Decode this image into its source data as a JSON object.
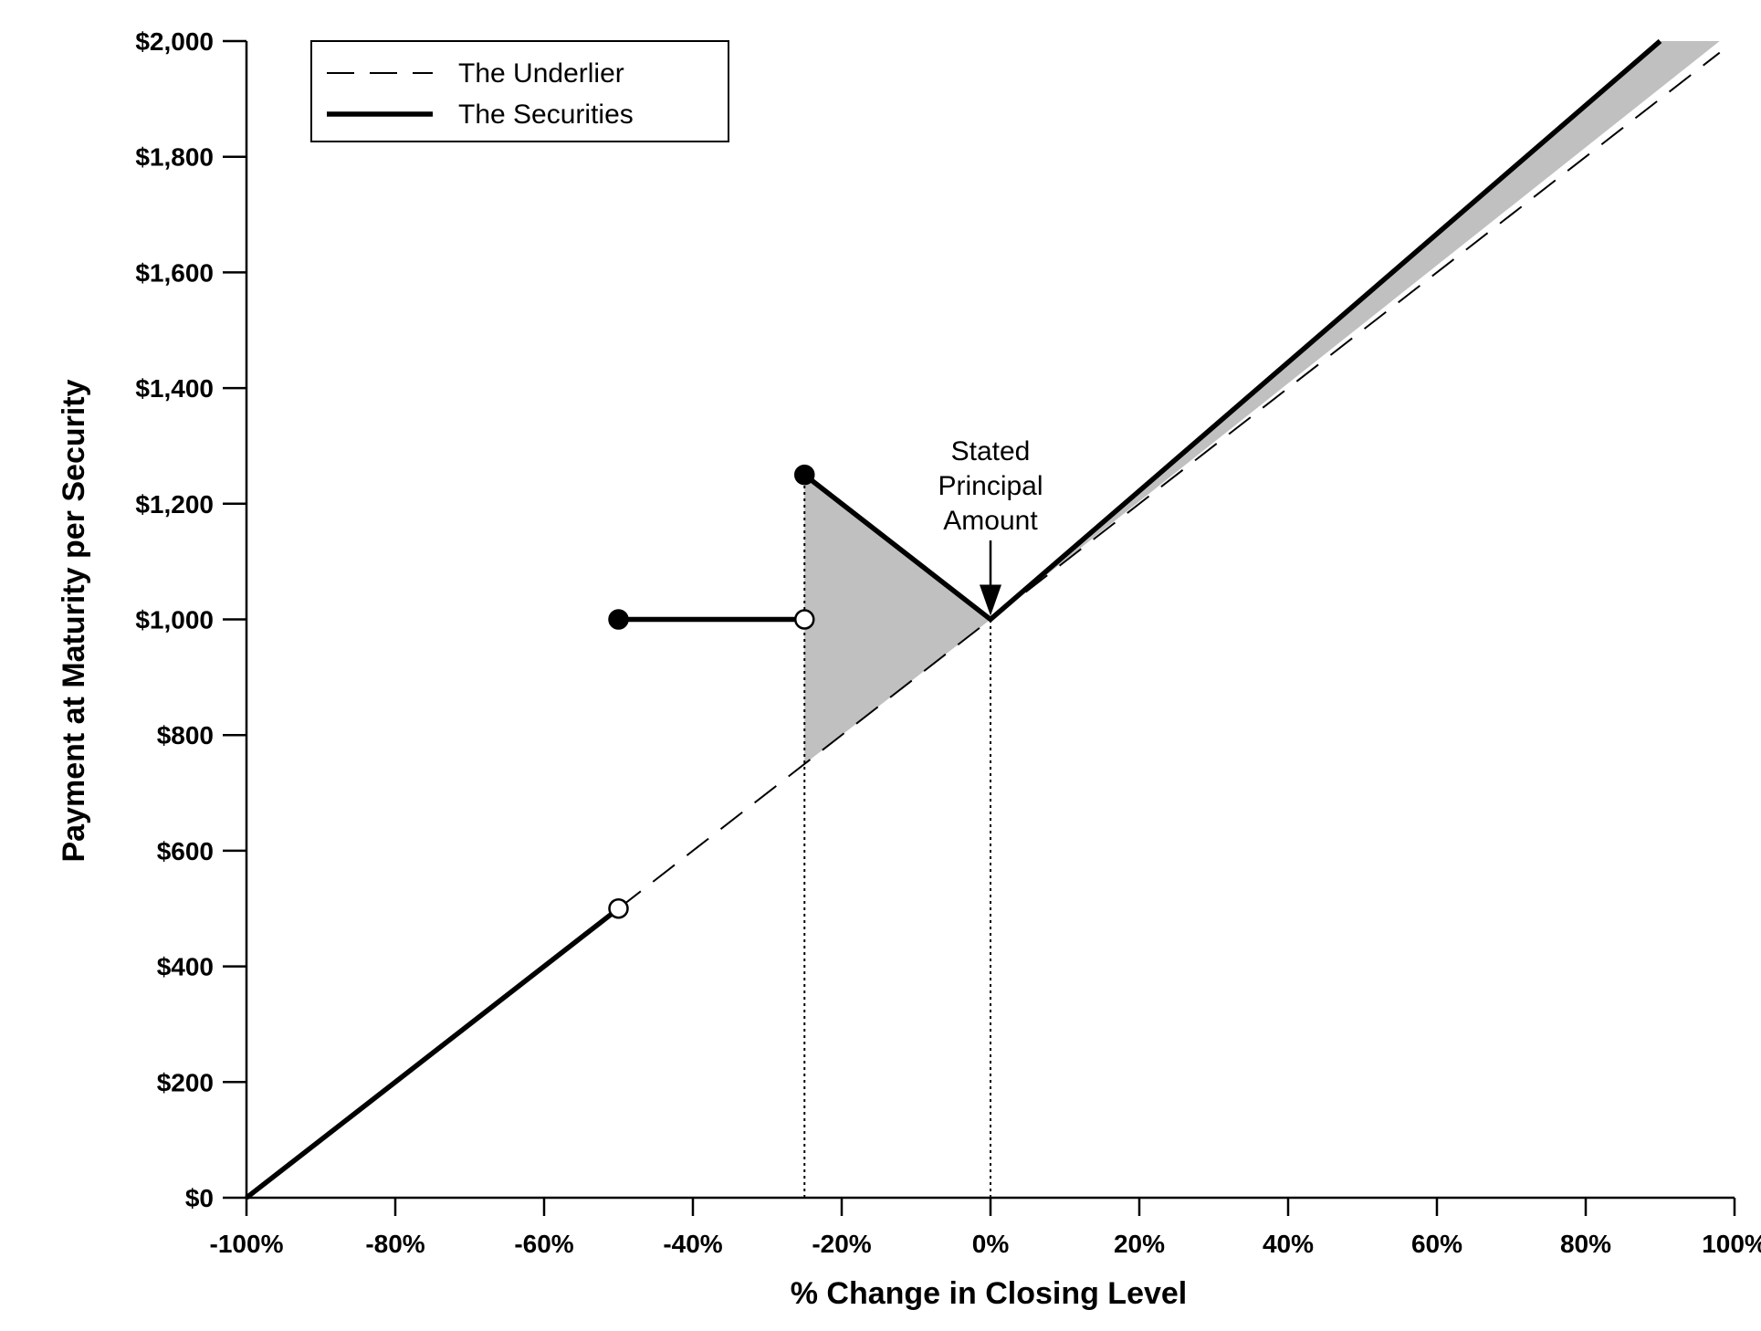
{
  "chart_data": {
    "type": "line",
    "title": "",
    "xlabel": "% Change in Closing Level",
    "ylabel": "Payment at Maturity per Security",
    "xlim": [
      -100,
      100
    ],
    "ylim": [
      0,
      2000
    ],
    "x_ticks": [
      -100,
      -80,
      -60,
      -40,
      -20,
      0,
      20,
      40,
      60,
      80,
      100
    ],
    "x_tick_labels": [
      "-100%",
      "-80%",
      "-60%",
      "-40%",
      "-20%",
      "0%",
      "20%",
      "40%",
      "60%",
      "80%",
      "100%"
    ],
    "y_ticks": [
      0,
      200,
      400,
      600,
      800,
      1000,
      1200,
      1400,
      1600,
      1800,
      2000
    ],
    "y_tick_labels": [
      "$0",
      "$200",
      "$400",
      "$600",
      "$800",
      "$1,000",
      "$1,200",
      "$1,400",
      "$1,600",
      "$1,800",
      "$2,000"
    ],
    "grid": false,
    "legend_position": "top-left",
    "series": [
      {
        "name": "The Underlier",
        "style": "dashed",
        "color": "#000000",
        "segments": [
          [
            [
              -100,
              0
            ],
            [
              98,
              1980
            ]
          ]
        ]
      },
      {
        "name": "The Securities",
        "style": "solid",
        "color": "#000000",
        "segments": [
          [
            [
              -100,
              0
            ],
            [
              -50,
              500
            ]
          ],
          [
            [
              -50,
              1000
            ],
            [
              -25,
              1000
            ]
          ],
          [
            [
              -25,
              1250
            ],
            [
              0,
              1000
            ],
            [
              90,
              2000
            ]
          ]
        ]
      }
    ],
    "markers": [
      {
        "x": -50,
        "y": 500,
        "fill": "open"
      },
      {
        "x": -50,
        "y": 1000,
        "fill": "filled"
      },
      {
        "x": -25,
        "y": 1000,
        "fill": "open"
      },
      {
        "x": -25,
        "y": 1250,
        "fill": "filled"
      }
    ],
    "shaded_regions": [
      {
        "color": "#c0c0c0",
        "polygon": [
          [
            -25,
            1250
          ],
          [
            0,
            1000
          ],
          [
            -25,
            750
          ]
        ]
      },
      {
        "color": "#c0c0c0",
        "polygon": [
          [
            0,
            1000
          ],
          [
            90,
            2000
          ],
          [
            98,
            2000
          ],
          [
            0,
            1000
          ]
        ]
      }
    ],
    "reference_lines": [
      {
        "x": -25,
        "y_from": 0,
        "y_to": 1250,
        "style": "dotted"
      },
      {
        "x": 0,
        "y_from": 0,
        "y_to": 1000,
        "style": "dotted"
      }
    ],
    "annotations": [
      {
        "lines": [
          "Stated",
          "Principal",
          "Amount"
        ],
        "arrow_to": [
          0,
          1000
        ]
      }
    ]
  }
}
